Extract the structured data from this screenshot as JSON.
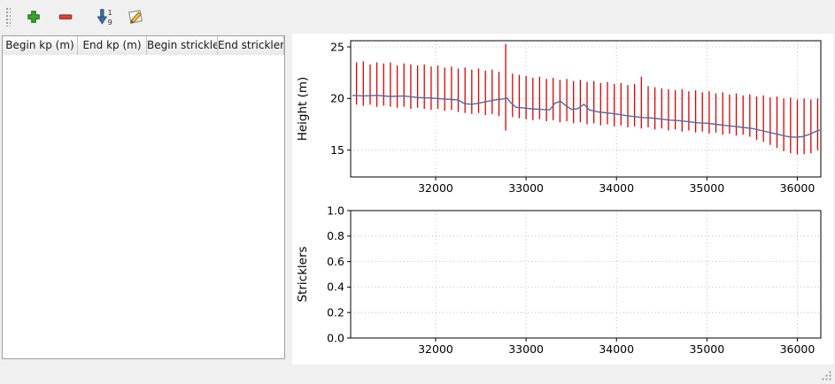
{
  "toolbar": {
    "buttons": [
      {
        "id": "add",
        "icon": "plus-icon"
      },
      {
        "id": "remove",
        "icon": "minus-icon"
      },
      {
        "id": "sort",
        "icon": "sort-numeric-icon",
        "digits_top": "1",
        "digits_bottom": "9"
      },
      {
        "id": "edit",
        "icon": "edit-pencil-icon"
      }
    ]
  },
  "table": {
    "columns": [
      "Begin kp (m)",
      "End kp (m)",
      "Begin strickler",
      "End strickler"
    ],
    "rows": []
  },
  "colors": {
    "bars": "#dd0000",
    "profile_line": "#4a6da7",
    "grid": "#b5b5b5",
    "axis": "#000000"
  },
  "chart_data": [
    {
      "type": "line",
      "title": "",
      "xlabel": "",
      "ylabel": "Height (m)",
      "xlim": [
        31060,
        36260
      ],
      "ylim": [
        12.4,
        25.6
      ],
      "xticks": [
        32000,
        33000,
        34000,
        35000,
        36000
      ],
      "xtick_labels": [
        "32000",
        "33000",
        "34000",
        "35000",
        "36000"
      ],
      "yticks": [
        15,
        20,
        25
      ],
      "ytick_labels": [
        "15",
        "20",
        "25"
      ],
      "grid": true,
      "legend": "none",
      "series": [
        {
          "name": "section-extent-bars",
          "style": "vbars",
          "color": "#dd0000",
          "bars": [
            [
              31125,
              19.4,
              23.5
            ],
            [
              31200,
              19.3,
              23.6
            ],
            [
              31275,
              19.4,
              23.3
            ],
            [
              31350,
              19.2,
              23.5
            ],
            [
              31425,
              19.3,
              23.4
            ],
            [
              31500,
              19.2,
              23.5
            ],
            [
              31575,
              19.1,
              23.2
            ],
            [
              31650,
              19.2,
              23.4
            ],
            [
              31725,
              19.0,
              23.3
            ],
            [
              31800,
              19.1,
              23.2
            ],
            [
              31875,
              19.0,
              23.3
            ],
            [
              31950,
              18.9,
              23.1
            ],
            [
              32025,
              19.0,
              23.2
            ],
            [
              32100,
              18.8,
              23.0
            ],
            [
              32175,
              18.9,
              23.1
            ],
            [
              32250,
              18.7,
              22.9
            ],
            [
              32325,
              18.6,
              23.0
            ],
            [
              32400,
              18.5,
              22.8
            ],
            [
              32475,
              18.6,
              22.9
            ],
            [
              32550,
              18.4,
              22.7
            ],
            [
              32625,
              18.5,
              22.8
            ],
            [
              32700,
              18.3,
              22.6
            ],
            [
              32775,
              16.9,
              25.3
            ],
            [
              32850,
              18.2,
              22.4
            ],
            [
              32925,
              18.1,
              22.3
            ],
            [
              33000,
              18.0,
              22.2
            ],
            [
              33075,
              17.9,
              22.0
            ],
            [
              33150,
              18.0,
              22.1
            ],
            [
              33225,
              17.8,
              21.9
            ],
            [
              33300,
              17.9,
              22.0
            ],
            [
              33375,
              17.7,
              21.8
            ],
            [
              33450,
              17.8,
              21.9
            ],
            [
              33525,
              17.6,
              21.7
            ],
            [
              33600,
              17.7,
              21.8
            ],
            [
              33675,
              17.5,
              21.6
            ],
            [
              33750,
              17.6,
              21.7
            ],
            [
              33825,
              17.4,
              21.5
            ],
            [
              33900,
              17.5,
              21.6
            ],
            [
              33975,
              17.3,
              21.4
            ],
            [
              34050,
              17.4,
              21.5
            ],
            [
              34125,
              17.2,
              21.3
            ],
            [
              34200,
              17.3,
              21.4
            ],
            [
              34275,
              17.1,
              22.1
            ],
            [
              34350,
              17.2,
              21.2
            ],
            [
              34425,
              17.0,
              21.1
            ],
            [
              34500,
              17.1,
              21.0
            ],
            [
              34575,
              16.9,
              20.9
            ],
            [
              34650,
              17.0,
              20.8
            ],
            [
              34725,
              16.8,
              20.9
            ],
            [
              34800,
              16.9,
              20.7
            ],
            [
              34875,
              16.7,
              20.8
            ],
            [
              34950,
              16.8,
              20.6
            ],
            [
              35025,
              16.6,
              20.7
            ],
            [
              35100,
              16.7,
              20.5
            ],
            [
              35175,
              16.5,
              20.6
            ],
            [
              35250,
              16.6,
              20.4
            ],
            [
              35325,
              16.4,
              20.5
            ],
            [
              35400,
              16.5,
              20.3
            ],
            [
              35475,
              16.3,
              20.4
            ],
            [
              35550,
              16.0,
              20.2
            ],
            [
              35625,
              15.8,
              20.3
            ],
            [
              35700,
              15.5,
              20.1
            ],
            [
              35775,
              15.2,
              20.2
            ],
            [
              35850,
              14.9,
              20.0
            ],
            [
              35925,
              14.7,
              20.1
            ],
            [
              36000,
              14.6,
              19.9
            ],
            [
              36075,
              14.6,
              20.0
            ],
            [
              36150,
              14.7,
              19.9
            ],
            [
              36225,
              15.0,
              20.0
            ]
          ]
        },
        {
          "name": "height-profile-line",
          "style": "line",
          "color": "#4a6da7",
          "points": [
            [
              31080,
              20.3
            ],
            [
              31200,
              20.25
            ],
            [
              31350,
              20.3
            ],
            [
              31500,
              20.2
            ],
            [
              31650,
              20.25
            ],
            [
              31800,
              20.1
            ],
            [
              31950,
              20.05
            ],
            [
              32100,
              19.95
            ],
            [
              32250,
              19.85
            ],
            [
              32320,
              19.5
            ],
            [
              32400,
              19.45
            ],
            [
              32480,
              19.55
            ],
            [
              32560,
              19.7
            ],
            [
              32650,
              19.85
            ],
            [
              32740,
              19.95
            ],
            [
              32790,
              20.05
            ],
            [
              32830,
              19.6
            ],
            [
              32890,
              19.15
            ],
            [
              32960,
              19.1
            ],
            [
              33060,
              19.0
            ],
            [
              33160,
              18.95
            ],
            [
              33260,
              18.9
            ],
            [
              33320,
              19.55
            ],
            [
              33380,
              19.75
            ],
            [
              33440,
              19.3
            ],
            [
              33500,
              18.95
            ],
            [
              33570,
              19.0
            ],
            [
              33640,
              19.45
            ],
            [
              33700,
              18.9
            ],
            [
              33800,
              18.7
            ],
            [
              33900,
              18.6
            ],
            [
              34000,
              18.5
            ],
            [
              34100,
              18.35
            ],
            [
              34200,
              18.25
            ],
            [
              34300,
              18.15
            ],
            [
              34400,
              18.1
            ],
            [
              34500,
              18.0
            ],
            [
              34600,
              17.9
            ],
            [
              34700,
              17.85
            ],
            [
              34800,
              17.75
            ],
            [
              34900,
              17.65
            ],
            [
              35000,
              17.6
            ],
            [
              35100,
              17.5
            ],
            [
              35200,
              17.4
            ],
            [
              35300,
              17.3
            ],
            [
              35400,
              17.2
            ],
            [
              35500,
              17.1
            ],
            [
              35600,
              16.9
            ],
            [
              35700,
              16.7
            ],
            [
              35800,
              16.5
            ],
            [
              35900,
              16.3
            ],
            [
              35975,
              16.25
            ],
            [
              36050,
              16.3
            ],
            [
              36125,
              16.5
            ],
            [
              36200,
              16.8
            ],
            [
              36250,
              16.95
            ]
          ]
        }
      ]
    },
    {
      "type": "line",
      "title": "",
      "xlabel": "",
      "ylabel": "Stricklers",
      "xlim": [
        31060,
        36260
      ],
      "ylim": [
        0.0,
        1.0
      ],
      "xticks": [
        32000,
        33000,
        34000,
        35000,
        36000
      ],
      "xtick_labels": [
        "32000",
        "33000",
        "34000",
        "35000",
        "36000"
      ],
      "yticks": [
        0.0,
        0.2,
        0.4,
        0.6,
        0.8,
        1.0
      ],
      "ytick_labels": [
        "0.0",
        "0.2",
        "0.4",
        "0.6",
        "0.8",
        "1.0"
      ],
      "grid": true,
      "legend": "none",
      "series": []
    }
  ]
}
